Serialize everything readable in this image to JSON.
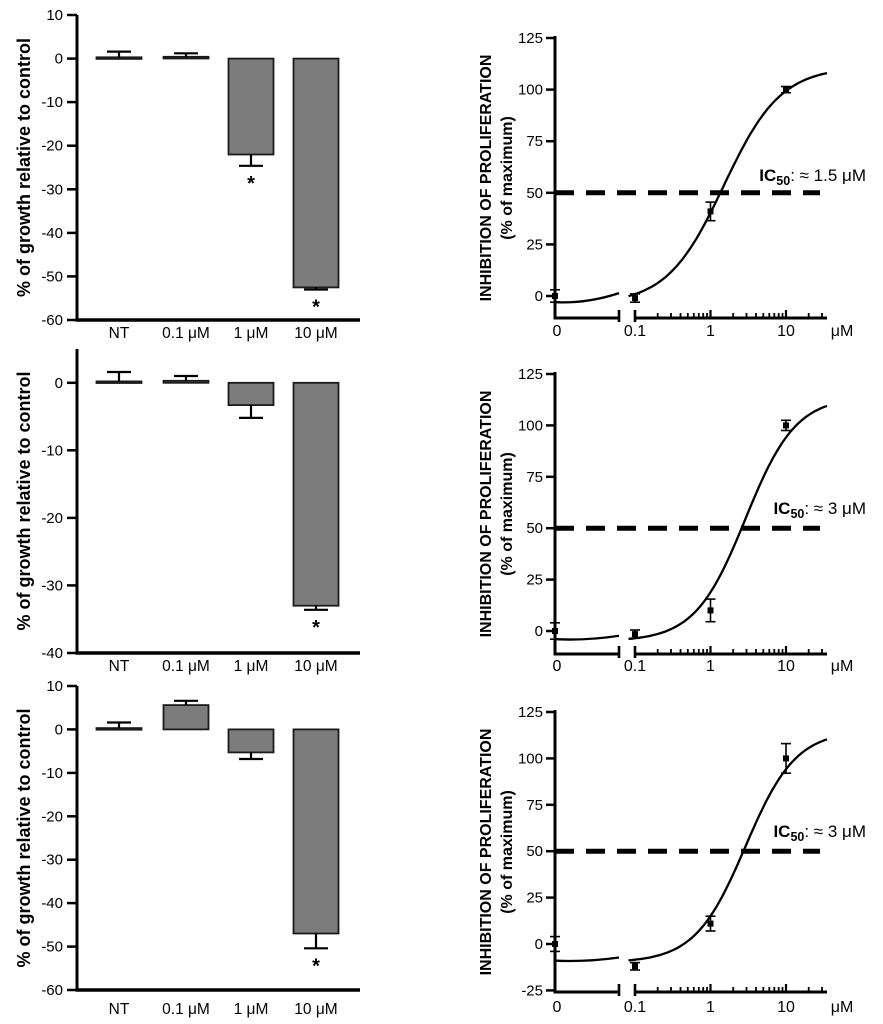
{
  "figure": {
    "background": "#ffffff",
    "axis_color": "#000000",
    "bar_fill": "#7c7c7c",
    "bar_stroke": "#1b1b1b",
    "significance_marker": "*"
  },
  "labels": {
    "bar_ylabel": "% of growth relative to control",
    "dose_ylabel_line1": "INHIBITION OF PROLIFERATION",
    "dose_ylabel_line2": "(% of maximum)",
    "x_unit": "μM"
  },
  "chart_data": [
    {
      "id": "growth-bar-1",
      "type": "bar",
      "panel": "top-left",
      "ylabel": "% of growth relative to control",
      "categories": [
        "NT",
        "0.1 μM",
        "1 μM",
        "10 μM"
      ],
      "values": [
        0.3,
        0.4,
        -22,
        -52.5
      ],
      "errors": [
        1.3,
        0.8,
        2.6,
        0.5
      ],
      "significant": [
        false,
        false,
        true,
        true
      ],
      "ylim": [
        -60,
        10
      ],
      "yticks": [
        10,
        0,
        -10,
        -20,
        -30,
        -40,
        -50,
        -60
      ],
      "grid": false
    },
    {
      "id": "dose-response-1",
      "type": "scatter-curve",
      "panel": "top-right",
      "ylabel_line1": "INHIBITION OF PROLIFERATION",
      "ylabel_line2": "(% of maximum)",
      "x_unit": "μM",
      "x": [
        0,
        0.1,
        1,
        10
      ],
      "y": [
        0,
        -1,
        41,
        100
      ],
      "errors": [
        3,
        2,
        4.5,
        1.5
      ],
      "ylim": [
        -12,
        125
      ],
      "yticks": [
        0,
        25,
        50,
        75,
        100,
        125
      ],
      "xtick_labels": [
        "0",
        "0.1",
        "1",
        "10"
      ],
      "log_minor_ticks": [
        0.2,
        0.3,
        0.4,
        0.5,
        0.6,
        0.7,
        0.8,
        0.9,
        2,
        3,
        4,
        5,
        6,
        7,
        8,
        9,
        20,
        30
      ],
      "axis_break": true,
      "reference_line_y": 50,
      "ic50": {
        "prefix": "IC",
        "sub": "50",
        "rest": ": ≈ 1.5 μM",
        "value_um": 1.5
      },
      "curve_fit": {
        "bottom": -4,
        "top": 111,
        "ec50": 1.5,
        "hill": 1.15
      }
    },
    {
      "id": "growth-bar-2",
      "type": "bar",
      "panel": "middle-left",
      "ylabel": "% of growth relative to control",
      "categories": [
        "NT",
        "0.1 μM",
        "1 μM",
        "10 μM"
      ],
      "values": [
        0.2,
        0.3,
        -3.3,
        -33
      ],
      "errors": [
        1.4,
        0.7,
        1.9,
        0.6
      ],
      "significant": [
        false,
        false,
        false,
        true
      ],
      "ylim": [
        -40,
        5
      ],
      "yticks": [
        0,
        -10,
        -20,
        -30,
        -40
      ],
      "grid": false
    },
    {
      "id": "dose-response-2",
      "type": "scatter-curve",
      "panel": "middle-right",
      "ylabel_line1": "INHIBITION OF PROLIFERATION",
      "ylabel_line2": "(% of maximum)",
      "x_unit": "μM",
      "x": [
        0,
        0.1,
        1,
        10
      ],
      "y": [
        0,
        -1.5,
        10,
        100
      ],
      "errors": [
        4,
        2,
        5.5,
        2.5
      ],
      "ylim": [
        -12,
        125
      ],
      "yticks": [
        0,
        25,
        50,
        75,
        100,
        125
      ],
      "xtick_labels": [
        "0",
        "0.1",
        "1",
        "10"
      ],
      "log_minor_ticks": [
        0.2,
        0.3,
        0.4,
        0.5,
        0.6,
        0.7,
        0.8,
        0.9,
        2,
        3,
        4,
        5,
        6,
        7,
        8,
        9,
        20,
        30
      ],
      "axis_break": true,
      "reference_line_y": 50,
      "ic50": {
        "prefix": "IC",
        "sub": "50",
        "rest": ": ≈ 3 μM",
        "value_um": 3
      },
      "curve_fit": {
        "bottom": -5,
        "top": 114,
        "ec50": 2.9,
        "hill": 1.3
      }
    },
    {
      "id": "growth-bar-3",
      "type": "bar",
      "panel": "bottom-left",
      "ylabel": "% of growth relative to control",
      "categories": [
        "NT",
        "0.1 μM",
        "1 μM",
        "10 μM"
      ],
      "values": [
        0.3,
        5.6,
        -5.3,
        -47
      ],
      "errors": [
        1.3,
        1,
        1.5,
        3.4
      ],
      "significant": [
        false,
        false,
        false,
        true
      ],
      "ylim": [
        -60,
        10
      ],
      "yticks": [
        10,
        0,
        -10,
        -20,
        -30,
        -40,
        -50,
        -60
      ],
      "grid": false
    },
    {
      "id": "dose-response-3",
      "type": "scatter-curve",
      "panel": "bottom-right",
      "ylabel_line1": "INHIBITION OF PROLIFERATION",
      "ylabel_line2": "(% of maximum)",
      "x_unit": "μM",
      "x": [
        0,
        0.1,
        1,
        10
      ],
      "y": [
        0,
        -12,
        11,
        100
      ],
      "errors": [
        4,
        2,
        4,
        8
      ],
      "ylim": [
        -27,
        125
      ],
      "yticks": [
        -25,
        0,
        25,
        50,
        75,
        100,
        125
      ],
      "xtick_labels": [
        "0",
        "0.1",
        "1",
        "10"
      ],
      "log_minor_ticks": [
        0.2,
        0.3,
        0.4,
        0.5,
        0.6,
        0.7,
        0.8,
        0.9,
        2,
        3,
        4,
        5,
        6,
        7,
        8,
        9,
        20,
        30
      ],
      "axis_break": true,
      "reference_line_y": 50,
      "ic50": {
        "prefix": "IC",
        "sub": "50",
        "rest": ": ≈ 3 μM",
        "value_um": 3
      },
      "curve_fit": {
        "bottom": -10,
        "top": 115,
        "ec50": 2.9,
        "hill": 1.3
      }
    }
  ]
}
